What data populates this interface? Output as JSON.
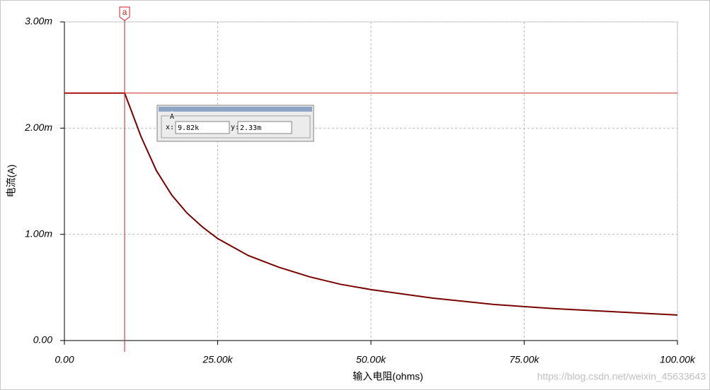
{
  "chart_data": {
    "type": "line",
    "xlabel": "输入电阻(ohms)",
    "ylabel": "电流(A)",
    "x": [
      0,
      9820,
      11000,
      12500,
      15000,
      17500,
      20000,
      22500,
      25000,
      30000,
      35000,
      40000,
      45000,
      50000,
      60000,
      70000,
      80000,
      90000,
      100000
    ],
    "series": [
      {
        "color": "#7a0000",
        "values": [
          0.00233,
          0.00233,
          0.00215,
          0.00192,
          0.0016,
          0.00137,
          0.0012,
          0.00107,
          0.00096,
          0.0008,
          0.00069,
          0.0006,
          0.00053,
          0.00048,
          0.0004,
          0.00034,
          0.0003,
          0.00027,
          0.00024
        ]
      }
    ],
    "xlim": [
      0,
      100000
    ],
    "ylim": [
      0,
      0.003
    ],
    "xticks": [
      {
        "value": 0,
        "label": "0.00"
      },
      {
        "value": 25000,
        "label": "25.00k"
      },
      {
        "value": 50000,
        "label": "50.00k"
      },
      {
        "value": 75000,
        "label": "75.00k"
      },
      {
        "value": 100000,
        "label": "100.00k"
      }
    ],
    "yticks": [
      {
        "value": 0,
        "label": "0.00"
      },
      {
        "value": 0.001,
        "label": "1.00m"
      },
      {
        "value": 0.002,
        "label": "2.00m"
      },
      {
        "value": 0.003,
        "label": "3.00m"
      }
    ],
    "grid": true,
    "cursor": {
      "name": "a",
      "x": 9820,
      "y": 0.00233,
      "color": "#cc2222",
      "box_title": "A",
      "x_label": "x:",
      "x_text": "9.82k",
      "y_label": "y:",
      "y_text": "2.33m"
    },
    "watermark": "https://blog.csdn.net/weixin_45633643"
  }
}
